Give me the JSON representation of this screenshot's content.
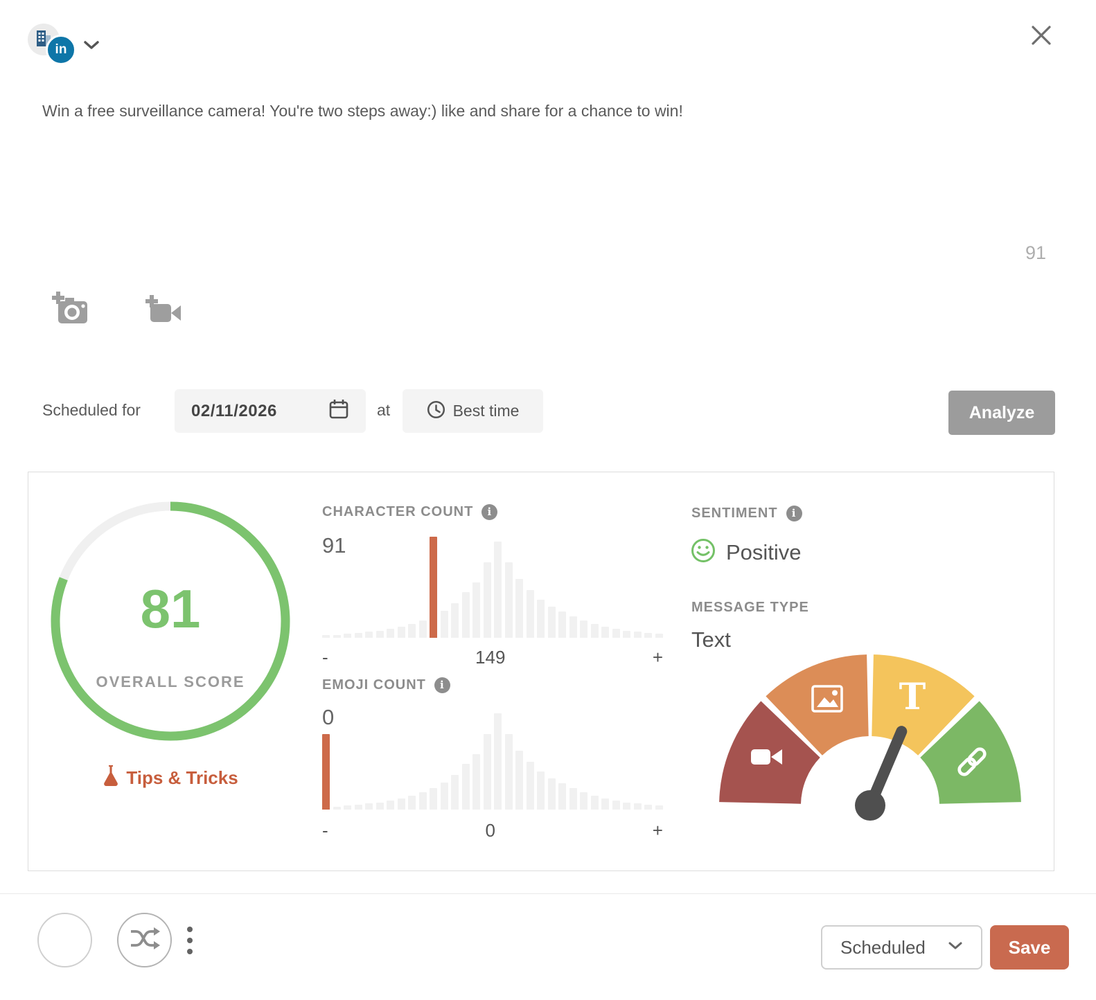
{
  "composer": {
    "account": {
      "network": "LinkedIn",
      "badge_text": "in"
    },
    "post_text": "Win a free surveillance camera! You're two steps away:) like and share for a chance to win!",
    "char_counter": "91"
  },
  "schedule": {
    "label": "Scheduled for",
    "date_value": "02/11/2026",
    "at_label": "at",
    "best_time_label": "Best time",
    "analyze_label": "Analyze"
  },
  "analysis": {
    "tips_label": "Tips & Tricks",
    "sentiment": {
      "title": "SENTIMENT",
      "value": "Positive",
      "sentiment_color": "#74c167"
    },
    "message_type": {
      "title": "MESSAGE TYPE",
      "value": "Text"
    }
  },
  "footer": {
    "status_value": "Scheduled",
    "save_label": "Save"
  },
  "colors": {
    "accent_orange": "#c96a4f",
    "score_green": "#7cc36e",
    "tips_orange": "#c75e3d",
    "analyze_gray": "#9c9c9c",
    "linkedin_blue": "#0e76a8"
  },
  "chart_data": [
    {
      "type": "donut",
      "label": "OVERALL SCORE",
      "value": 81,
      "max": 100,
      "color": "#7cc36e",
      "track_color": "#f0f0f0"
    },
    {
      "type": "bar",
      "title": "CHARACTER COUNT",
      "highlight_value": 91,
      "highlight_index": 10,
      "highlight_height": 100,
      "highlight_color": "#cd6a4a",
      "bar_color": "#f1f1f1",
      "xlabels": [
        "-",
        "149",
        "+"
      ],
      "values": [
        3,
        3,
        4,
        5,
        6,
        7,
        9,
        11,
        14,
        17,
        21,
        27,
        34,
        45,
        55,
        75,
        95,
        75,
        58,
        47,
        38,
        31,
        26,
        21,
        17,
        14,
        11,
        9,
        7,
        6,
        5,
        4
      ]
    },
    {
      "type": "bar",
      "title": "EMOJI COUNT",
      "highlight_value": 0,
      "highlight_index": 0,
      "highlight_height": 75,
      "highlight_color": "#cd6a4a",
      "bar_color": "#f1f1f1",
      "xlabels": [
        "-",
        "0",
        "+"
      ],
      "values": [
        3,
        3,
        4,
        5,
        6,
        7,
        9,
        11,
        14,
        17,
        21,
        27,
        34,
        45,
        55,
        75,
        95,
        75,
        58,
        47,
        38,
        31,
        26,
        21,
        17,
        14,
        11,
        9,
        7,
        6,
        5,
        4
      ]
    },
    {
      "type": "gauge",
      "title": "MESSAGE TYPE",
      "selected_segment": "text",
      "needle_angle_deg": 67,
      "needle_color": "#4f4f4f",
      "segments": [
        {
          "name": "video",
          "icon": "video-camera-icon",
          "color": "#a5534f"
        },
        {
          "name": "image",
          "icon": "image-icon",
          "color": "#dc8d57"
        },
        {
          "name": "text",
          "icon": "text-icon",
          "color": "#f4c45c"
        },
        {
          "name": "link",
          "icon": "link-icon",
          "color": "#7cb865"
        }
      ]
    }
  ]
}
